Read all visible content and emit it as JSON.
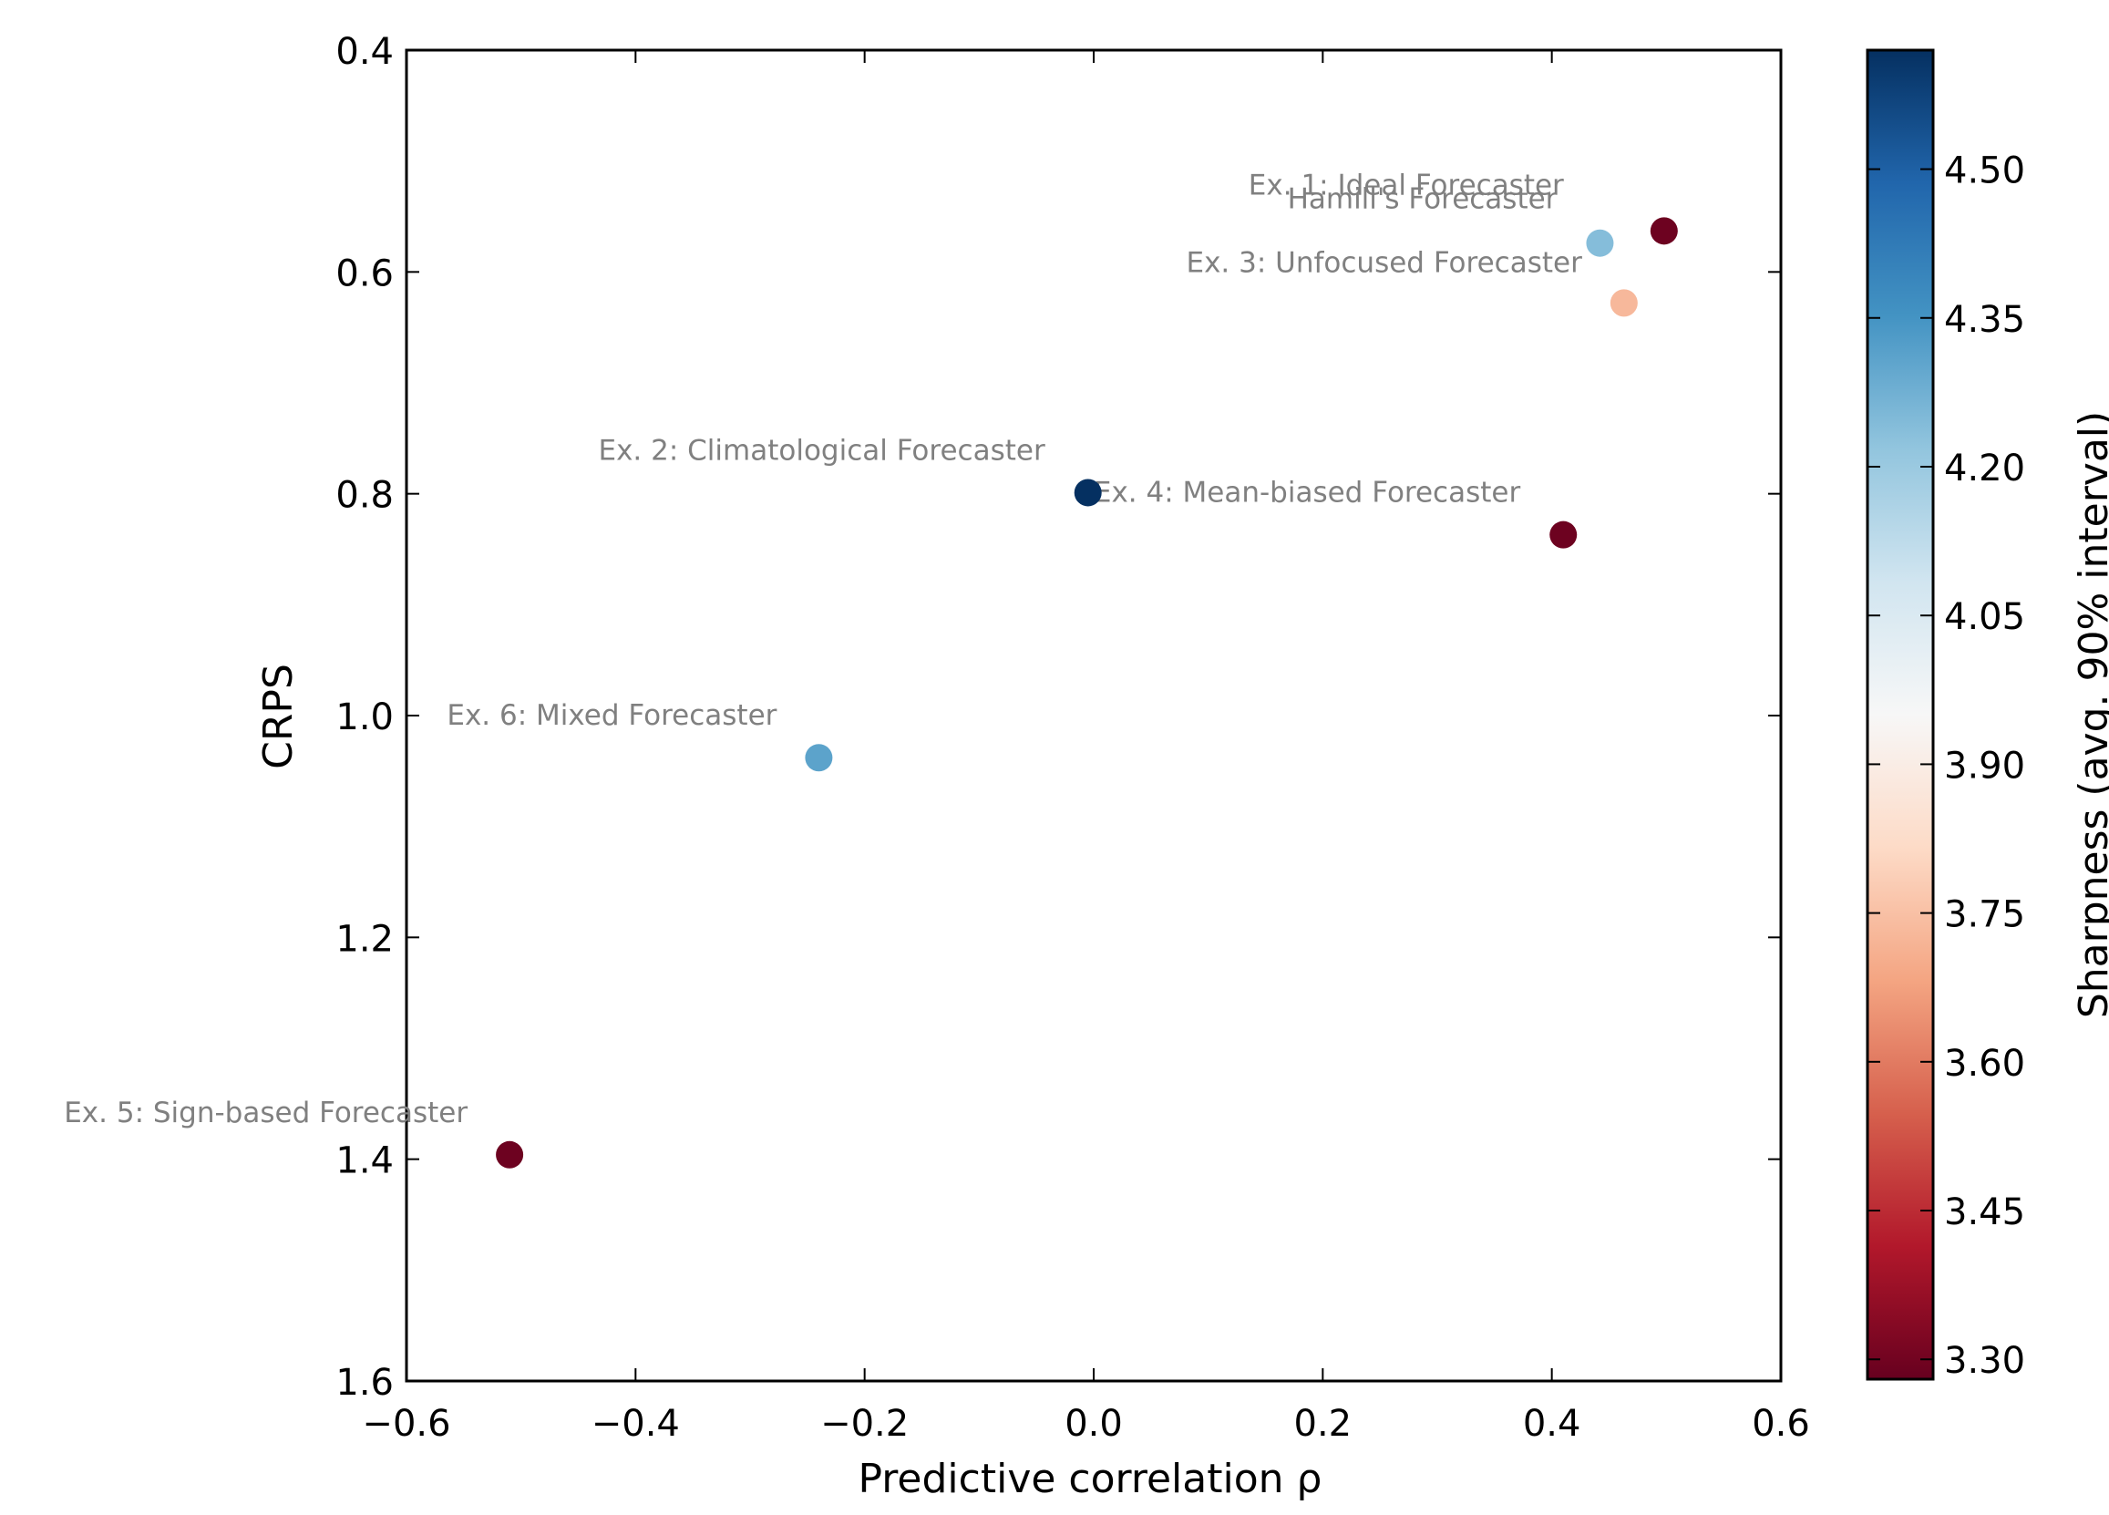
{
  "chart_data": {
    "type": "scatter",
    "xlabel": "Predictive correlation ρ",
    "ylabel": "CRPS",
    "xlim": [
      -0.6,
      0.6
    ],
    "ylim": [
      1.6,
      0.4
    ],
    "y_inverted": true,
    "x_ticks": [
      -0.6,
      -0.4,
      -0.2,
      0.0,
      0.2,
      0.4,
      0.6
    ],
    "x_tick_labels": [
      "−0.6",
      "−0.4",
      "−0.2",
      "0.0",
      "0.2",
      "0.4",
      "0.6"
    ],
    "y_ticks": [
      0.4,
      0.6,
      0.8,
      1.0,
      1.2,
      1.4,
      1.6
    ],
    "y_tick_labels": [
      "0.4",
      "0.6",
      "0.8",
      "1.0",
      "1.2",
      "1.4",
      "1.6"
    ],
    "grid": false,
    "colorbar": {
      "label": "Sharpness (avg. 90% interval)",
      "range": [
        3.28,
        4.62
      ],
      "colormap": "RdBu",
      "ticks": [
        3.3,
        3.45,
        3.6,
        3.75,
        3.9,
        4.05,
        4.2,
        4.35,
        4.5
      ],
      "tick_labels": [
        "3.30",
        "3.45",
        "3.60",
        "3.75",
        "3.90",
        "4.05",
        "4.20",
        "4.35",
        "4.50"
      ]
    },
    "points": [
      {
        "label": "Ex. 1: Ideal Forecaster",
        "x": 0.498,
        "y": 0.563,
        "sharpness": 3.29
      },
      {
        "label": "Hamill's Forecaster",
        "x": 0.442,
        "y": 0.574,
        "sharpness": 4.24
      },
      {
        "label": "Ex. 3: Unfocused Forecaster",
        "x": 0.463,
        "y": 0.628,
        "sharpness": 3.73
      },
      {
        "label": "Ex. 2: Climatological Forecaster",
        "x": -0.005,
        "y": 0.799,
        "sharpness": 4.62
      },
      {
        "label": "Ex. 4: Mean-biased Forecaster",
        "x": 0.41,
        "y": 0.837,
        "sharpness": 3.29
      },
      {
        "label": "Ex. 6: Mixed Forecaster",
        "x": -0.24,
        "y": 1.038,
        "sharpness": 4.31
      },
      {
        "label": "Ex. 5: Sign-based Forecaster",
        "x": -0.51,
        "y": 1.396,
        "sharpness": 3.29
      }
    ]
  }
}
